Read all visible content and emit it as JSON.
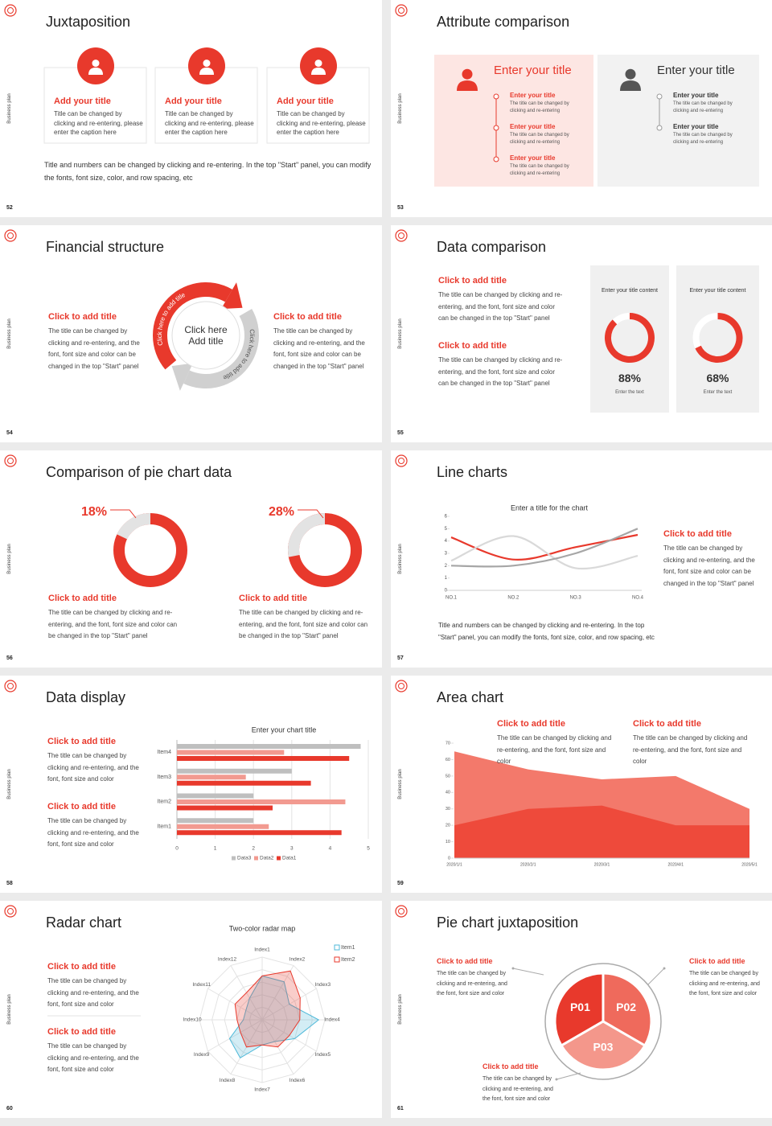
{
  "side_label": "Business plan",
  "slides": [
    {
      "number": "52",
      "title": "Juxtaposition",
      "cards": [
        {
          "title": "Add your title",
          "text": "Title can be changed by clicking and re-entering, please enter the caption here"
        },
        {
          "title": "Add your title",
          "text": "Title can be changed by clicking and re-entering, please enter the caption here"
        },
        {
          "title": "Add your title",
          "text": "Title can be changed by clicking and re-entering, please enter the caption here"
        }
      ],
      "note": "Title and numbers can be changed by clicking and re-entering. In the top \"Start\" panel, you can modify the fonts, font size, color, and row spacing, etc"
    },
    {
      "number": "53",
      "title": "Attribute comparison",
      "panels": [
        {
          "title": "Enter your title",
          "items": [
            {
              "title": "Enter your title",
              "text": "The title can be changed by clicking and re-entering"
            },
            {
              "title": "Enter your title",
              "text": "The title can be changed by clicking and re-entering"
            },
            {
              "title": "Enter your title",
              "text": "The title can be changed by clicking and re-entering"
            }
          ]
        },
        {
          "title": "Enter your title",
          "items": [
            {
              "title": "Enter your title",
              "text": "The title can be changed by clicking and re-entering"
            },
            {
              "title": "Enter your title",
              "text": "The title can be changed by clicking and re-entering"
            }
          ]
        }
      ]
    },
    {
      "number": "54",
      "title": "Financial structure",
      "blocks": [
        {
          "title": "Click to add title",
          "text": "The title can be changed by clicking and re-entering, and the font, font size and color can be changed in the top \"Start\" panel"
        },
        {
          "title": "Click to add title",
          "text": "The title can be changed by clicking and re-entering, and the font, font size and color can be changed in the top \"Start\" panel"
        }
      ],
      "center": "Click here Add title",
      "arc_labels": [
        "Click here to add title",
        "Click here to add title"
      ]
    },
    {
      "number": "55",
      "title": "Data comparison",
      "blocks": [
        {
          "title": "Click to add title",
          "text": "The title can be changed by clicking and re-entering, and the font, font size and color can be changed in the top \"Start\" panel"
        },
        {
          "title": "Click to add title",
          "text": "The title can be changed by clicking and re-entering, and the font, font size and color can be changed in the top \"Start\" panel"
        }
      ],
      "cards": [
        {
          "header": "Enter your title content",
          "value": {
            "value": 88,
            "label": "88%"
          },
          "caption": "Enter the text"
        },
        {
          "header": "Enter your title content",
          "value": {
            "value": 68,
            "label": "68%"
          },
          "caption": "Enter the text"
        }
      ]
    },
    {
      "number": "56",
      "title": "Comparison of pie chart data",
      "blocks": [
        {
          "title": "Click to add title",
          "text": "The title can be changed by clicking and re-entering, and the font, font size and color can be changed in the top \"Start\" panel"
        },
        {
          "title": "Click to add title",
          "text": "The title can be changed by clicking and re-entering, and the font, font size and color can be changed in the top \"Start\" panel"
        }
      ],
      "donuts": [
        {
          "value": 18,
          "label": "18%"
        },
        {
          "value": 28,
          "label": "28%"
        }
      ]
    },
    {
      "number": "57",
      "title": "Line charts",
      "chart": {
        "type": "line",
        "title": "Enter a title for the chart",
        "categories": [
          "NO.1",
          "NO.2",
          "NO.3",
          "NO.4"
        ],
        "series": [
          {
            "color": "#e8392c",
            "values": [
              4.3,
              2.5,
              3.5,
              4.5
            ]
          },
          {
            "color": "#d9d9d9",
            "values": [
              2.4,
              4.4,
              1.8,
              2.8
            ]
          },
          {
            "color": "#a6a6a6",
            "values": [
              2,
              2,
              3,
              5
            ]
          }
        ],
        "ylim": [
          0,
          6
        ],
        "yticks": [
          0,
          1,
          2,
          3,
          4,
          5,
          6
        ]
      },
      "block": {
        "title": "Click to add title",
        "text": "The title can be changed by clicking and re-entering, and the font, font size and color can be changed in the top \"Start\" panel"
      },
      "note": "Title and numbers can be changed by clicking and re-entering. In the top \"Start\" panel, you can modify the fonts, font size, color, and row spacing, etc"
    },
    {
      "number": "58",
      "title": "Data display",
      "blocks": [
        {
          "title": "Click to add title",
          "text": "The title can be changed by clicking and re-entering, and the font, font size and color"
        },
        {
          "title": "Click to add title",
          "text": "The title can be changed by clicking and re-entering, and the font, font size and color"
        }
      ],
      "chart": {
        "type": "bar",
        "title": "Enter your chart title",
        "categories": [
          "Item1",
          "Item2",
          "Item3",
          "Item4"
        ],
        "series": [
          {
            "name": "Data1",
            "color": "#e8392c",
            "values": [
              4.3,
              2.5,
              3.5,
              4.5
            ]
          },
          {
            "name": "Data2",
            "color": "#f29a90",
            "values": [
              2.4,
              4.4,
              1.8,
              2.8
            ]
          },
          {
            "name": "Data3",
            "color": "#bfbfbf",
            "values": [
              2,
              2,
              3,
              4.8
            ]
          }
        ],
        "xlim": [
          0,
          5
        ],
        "xticks": [
          0,
          1,
          2,
          3,
          4,
          5
        ],
        "grid": true
      }
    },
    {
      "number": "59",
      "title": "Area chart",
      "blocks": [
        {
          "title": "Click to add title",
          "text": "The title can be changed by clicking and re-entering, and the font, font size and color"
        },
        {
          "title": "Click to add title",
          "text": "The title can be changed by clicking and re-entering, and the font, font size and color"
        }
      ],
      "chart": {
        "type": "area",
        "categories": [
          "2020/1/1",
          "2020/2/1",
          "2020/3/1",
          "2020/4/1",
          "2020/5/1"
        ],
        "series": [
          {
            "color": "#f3796b",
            "values": [
              65,
              54,
              48,
              50,
              30
            ]
          },
          {
            "color": "#ee4a3b",
            "values": [
              20,
              30,
              32,
              20,
              20
            ]
          }
        ],
        "ylim": [
          0,
          70
        ],
        "yticks": [
          0,
          10,
          20,
          30,
          40,
          50,
          60,
          70
        ]
      }
    },
    {
      "number": "60",
      "title": "Radar chart",
      "blocks": [
        {
          "title": "Click to add title",
          "text": "The title can be changed by clicking and re-entering, and the font, font size and color"
        },
        {
          "title": "Click to add title",
          "text": "The title can be changed by clicking and re-entering, and the font, font size and color"
        }
      ],
      "chart": {
        "type": "radar",
        "title": "Two-color radar map",
        "categories": [
          "Index1",
          "Index2",
          "Index3",
          "Index4",
          "Index5",
          "Index6",
          "Index7",
          "Index8",
          "Index9",
          "Index10",
          "Index11",
          "Index12"
        ],
        "series": [
          {
            "name": "Item1",
            "color": "#4fb9d9",
            "values": [
              7,
              7,
              5,
              9,
              6,
              4,
              4,
              7,
              6,
              3,
              3,
              4
            ]
          },
          {
            "name": "Item2",
            "color": "#e8392c",
            "values": [
              7,
              9,
              7,
              6,
              5,
              5,
              4,
              5,
              4,
              4,
              5,
              5
            ]
          }
        ],
        "rlim": [
          0,
          10
        ],
        "rticks": [
          2,
          4,
          6,
          8,
          10
        ]
      }
    },
    {
      "number": "61",
      "title": "Pie chart juxtaposition",
      "blocks": [
        {
          "title": "Click to add title",
          "text": "The title can be changed by clicking and re-entering, and the font, font size and color"
        },
        {
          "title": "Click to add title",
          "text": "The title can be changed by clicking and re-entering, and the font, font size and color"
        },
        {
          "title": "Click to add title",
          "text": "The title can be changed by clicking and re-entering, and the font, font size and color"
        }
      ],
      "segments": [
        "P01",
        "P02",
        "P03"
      ]
    }
  ]
}
